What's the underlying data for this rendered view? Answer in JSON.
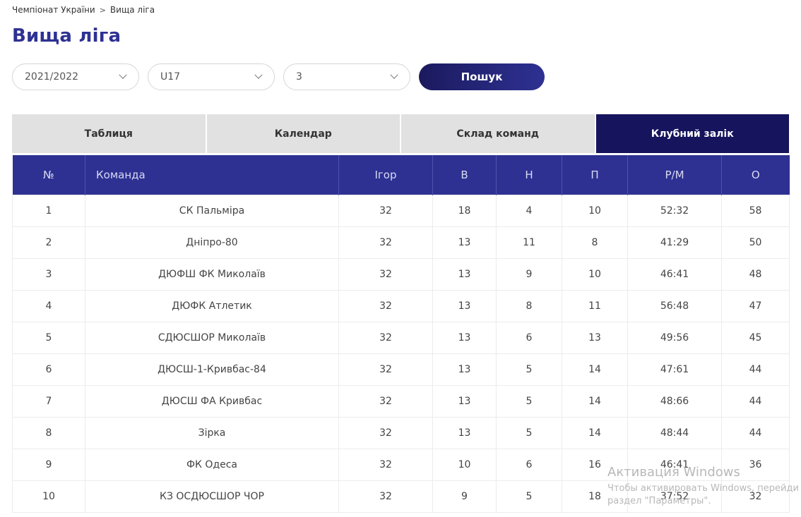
{
  "breadcrumb": {
    "items": [
      "Чемпіонат України",
      "Вища ліга"
    ],
    "separator": ">"
  },
  "page_title": "Вища ліга",
  "filters": {
    "season": "2021/2022",
    "age_group": "U17",
    "round": "3",
    "search_label": "Пошук"
  },
  "tabs": [
    {
      "label": "Таблиця",
      "active": false
    },
    {
      "label": "Календар",
      "active": false
    },
    {
      "label": "Склад команд",
      "active": false
    },
    {
      "label": "Клубний залік",
      "active": true
    }
  ],
  "table": {
    "headers": [
      "№",
      "Команда",
      "Ігор",
      "В",
      "Н",
      "П",
      "Р/М",
      "О"
    ],
    "rows": [
      [
        "1",
        "СК Пальміра",
        "32",
        "18",
        "4",
        "10",
        "52:32",
        "58"
      ],
      [
        "2",
        "Дніпро-80",
        "32",
        "13",
        "11",
        "8",
        "41:29",
        "50"
      ],
      [
        "3",
        "ДЮФШ ФК Миколаїв",
        "32",
        "13",
        "9",
        "10",
        "46:41",
        "48"
      ],
      [
        "4",
        "ДЮФК Атлетик",
        "32",
        "13",
        "8",
        "11",
        "56:48",
        "47"
      ],
      [
        "5",
        "СДЮСШОР Миколаїв",
        "32",
        "13",
        "6",
        "13",
        "49:56",
        "45"
      ],
      [
        "6",
        "ДЮСШ-1-Кривбас-84",
        "32",
        "13",
        "5",
        "14",
        "47:61",
        "44"
      ],
      [
        "7",
        "ДЮСШ ФА Кривбас",
        "32",
        "13",
        "5",
        "14",
        "48:66",
        "44"
      ],
      [
        "8",
        "Зірка",
        "32",
        "13",
        "5",
        "14",
        "48:44",
        "44"
      ],
      [
        "9",
        "ФК Одеса",
        "32",
        "10",
        "6",
        "16",
        "46:41",
        "36"
      ],
      [
        "10",
        "КЗ ОСДЮСШОР ЧОР",
        "32",
        "9",
        "5",
        "18",
        "37:52",
        "32"
      ]
    ]
  },
  "watermark": {
    "title": "Активация Windows",
    "line1": "Чтобы активировать Windows, перейди",
    "line2": "раздел \"Параметры\"."
  },
  "colors": {
    "accent": "#2e3192",
    "active_tab": "#15145c",
    "tab_bg": "#e1e1e1"
  }
}
